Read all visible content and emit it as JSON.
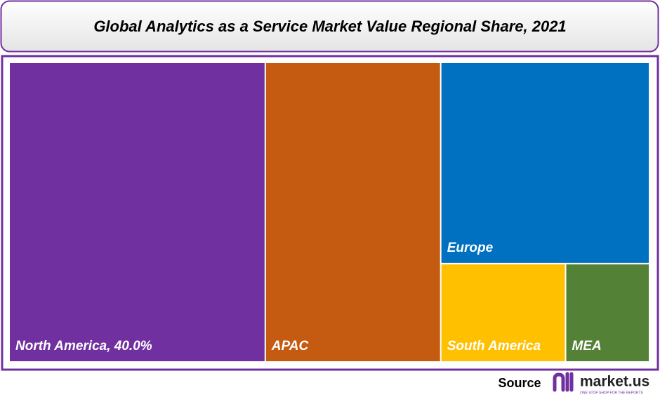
{
  "chart_data": {
    "type": "treemap",
    "title": "Global Analytics as a Service Market Value Regional Share, 2021",
    "categories": [
      "North America",
      "APAC",
      "Europe",
      "South America",
      "MEA"
    ],
    "values": [
      40.0,
      27.4,
      21.9,
      6.4,
      4.3
    ],
    "value_labels": [
      ", 40.0%",
      null,
      null,
      null,
      null
    ],
    "colors": [
      "#7030a0",
      "#c55a11",
      "#0070c0",
      "#ffc000",
      "#538135"
    ]
  },
  "footer": {
    "source_label": "Source",
    "brand": "market.us",
    "tagline": "ONE STOP SHOP FOR THE REPORTS"
  }
}
